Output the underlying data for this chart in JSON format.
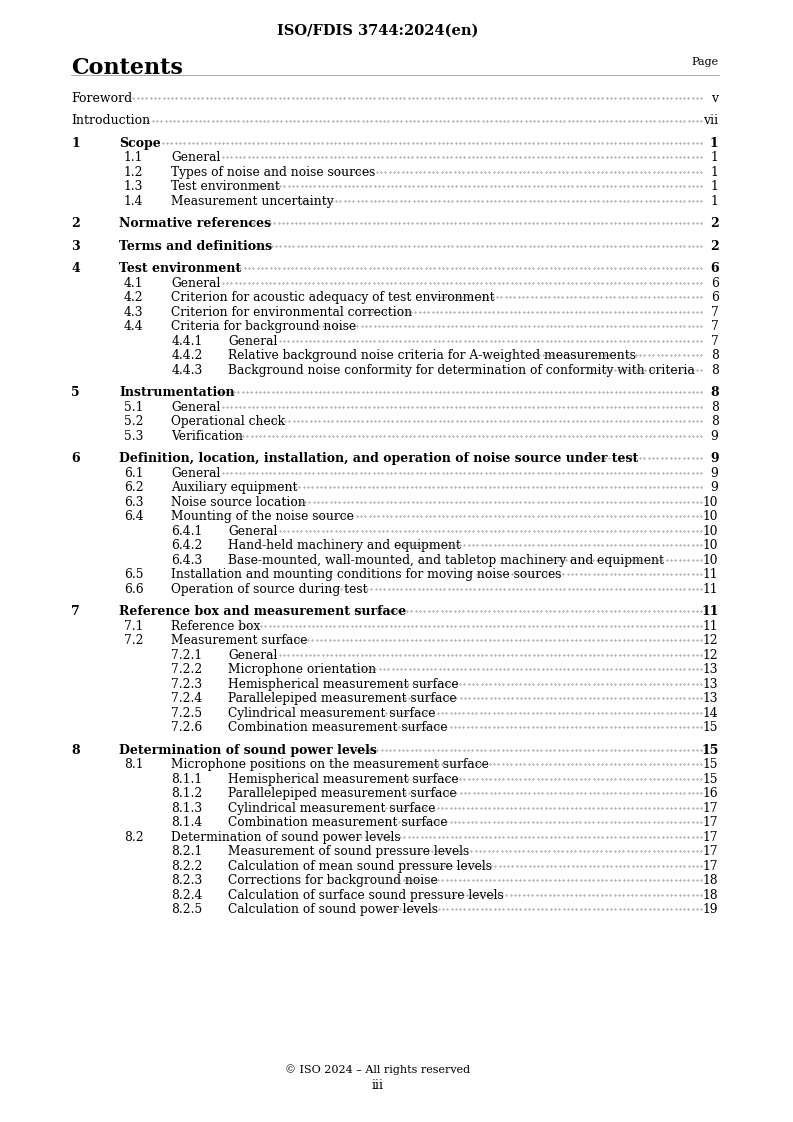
{
  "title": "ISO/FDIS 3744:2024(en)",
  "header_left": "Contents",
  "header_right": "Page",
  "footer": "© ISO 2024 – All rights reserved\niii",
  "background_color": "#ffffff",
  "text_color": "#000000",
  "entries": [
    {
      "level": 0,
      "num": "Foreword",
      "text": "",
      "page": "v",
      "bold": false,
      "gap_before": true
    },
    {
      "level": 0,
      "num": "Introduction",
      "text": "",
      "page": "vii",
      "bold": false,
      "gap_before": true
    },
    {
      "level": 0,
      "num": "1",
      "text": "Scope",
      "page": "1",
      "bold": true,
      "gap_before": true
    },
    {
      "level": 1,
      "num": "1.1",
      "text": "General",
      "page": "1",
      "bold": false,
      "gap_before": false
    },
    {
      "level": 1,
      "num": "1.2",
      "text": "Types of noise and noise sources",
      "page": "1",
      "bold": false,
      "gap_before": false
    },
    {
      "level": 1,
      "num": "1.3",
      "text": "Test environment",
      "page": "1",
      "bold": false,
      "gap_before": false
    },
    {
      "level": 1,
      "num": "1.4",
      "text": "Measurement uncertainty",
      "page": "1",
      "bold": false,
      "gap_before": false
    },
    {
      "level": 0,
      "num": "2",
      "text": "Normative references",
      "page": "2",
      "bold": true,
      "gap_before": true
    },
    {
      "level": 0,
      "num": "3",
      "text": "Terms and definitions",
      "page": "2",
      "bold": true,
      "gap_before": true
    },
    {
      "level": 0,
      "num": "4",
      "text": "Test environment",
      "page": "6",
      "bold": true,
      "gap_before": true
    },
    {
      "level": 1,
      "num": "4.1",
      "text": "General",
      "page": "6",
      "bold": false,
      "gap_before": false
    },
    {
      "level": 1,
      "num": "4.2",
      "text": "Criterion for acoustic adequacy of test environment",
      "page": "6",
      "bold": false,
      "gap_before": false
    },
    {
      "level": 1,
      "num": "4.3",
      "text": "Criterion for environmental correction",
      "page": "7",
      "bold": false,
      "gap_before": false
    },
    {
      "level": 1,
      "num": "4.4",
      "text": "Criteria for background noise",
      "page": "7",
      "bold": false,
      "gap_before": false
    },
    {
      "level": 2,
      "num": "4.4.1",
      "text": "General",
      "page": "7",
      "bold": false,
      "gap_before": false
    },
    {
      "level": 2,
      "num": "4.4.2",
      "text": "Relative background noise criteria for A-weighted measurements",
      "page": "8",
      "bold": false,
      "gap_before": false
    },
    {
      "level": 2,
      "num": "4.4.3",
      "text": "Background noise conformity for determination of conformity with criteria",
      "page": "8",
      "bold": false,
      "gap_before": false
    },
    {
      "level": 0,
      "num": "5",
      "text": "Instrumentation",
      "page": "8",
      "bold": true,
      "gap_before": true
    },
    {
      "level": 1,
      "num": "5.1",
      "text": "General",
      "page": "8",
      "bold": false,
      "gap_before": false
    },
    {
      "level": 1,
      "num": "5.2",
      "text": "Operational check",
      "page": "8",
      "bold": false,
      "gap_before": false
    },
    {
      "level": 1,
      "num": "5.3",
      "text": "Verification",
      "page": "9",
      "bold": false,
      "gap_before": false
    },
    {
      "level": 0,
      "num": "6",
      "text": "Definition, location, installation, and operation of noise source under test",
      "page": "9",
      "bold": true,
      "gap_before": true
    },
    {
      "level": 1,
      "num": "6.1",
      "text": "General",
      "page": "9",
      "bold": false,
      "gap_before": false
    },
    {
      "level": 1,
      "num": "6.2",
      "text": "Auxiliary equipment",
      "page": "9",
      "bold": false,
      "gap_before": false
    },
    {
      "level": 1,
      "num": "6.3",
      "text": "Noise source location",
      "page": "10",
      "bold": false,
      "gap_before": false
    },
    {
      "level": 1,
      "num": "6.4",
      "text": "Mounting of the noise source",
      "page": "10",
      "bold": false,
      "gap_before": false
    },
    {
      "level": 2,
      "num": "6.4.1",
      "text": "General",
      "page": "10",
      "bold": false,
      "gap_before": false
    },
    {
      "level": 2,
      "num": "6.4.2",
      "text": "Hand-held machinery and equipment",
      "page": "10",
      "bold": false,
      "gap_before": false
    },
    {
      "level": 2,
      "num": "6.4.3",
      "text": "Base-mounted, wall-mounted, and tabletop machinery and equipment",
      "page": "10",
      "bold": false,
      "gap_before": false
    },
    {
      "level": 1,
      "num": "6.5",
      "text": "Installation and mounting conditions for moving noise sources",
      "page": "11",
      "bold": false,
      "gap_before": false
    },
    {
      "level": 1,
      "num": "6.6",
      "text": "Operation of source during test",
      "page": "11",
      "bold": false,
      "gap_before": false
    },
    {
      "level": 0,
      "num": "7",
      "text": "Reference box and measurement surface",
      "page": "11",
      "bold": true,
      "gap_before": true
    },
    {
      "level": 1,
      "num": "7.1",
      "text": "Reference box",
      "page": "11",
      "bold": false,
      "gap_before": false
    },
    {
      "level": 1,
      "num": "7.2",
      "text": "Measurement surface",
      "page": "12",
      "bold": false,
      "gap_before": false
    },
    {
      "level": 2,
      "num": "7.2.1",
      "text": "General",
      "page": "12",
      "bold": false,
      "gap_before": false
    },
    {
      "level": 2,
      "num": "7.2.2",
      "text": "Microphone orientation",
      "page": "13",
      "bold": false,
      "gap_before": false
    },
    {
      "level": 2,
      "num": "7.2.3",
      "text": "Hemispherical measurement surface",
      "page": "13",
      "bold": false,
      "gap_before": false
    },
    {
      "level": 2,
      "num": "7.2.4",
      "text": "Parallelepiped measurement surface",
      "page": "13",
      "bold": false,
      "gap_before": false
    },
    {
      "level": 2,
      "num": "7.2.5",
      "text": "Cylindrical measurement surface",
      "page": "14",
      "bold": false,
      "gap_before": false
    },
    {
      "level": 2,
      "num": "7.2.6",
      "text": "Combination measurement surface",
      "page": "15",
      "bold": false,
      "gap_before": false
    },
    {
      "level": 0,
      "num": "8",
      "text": "Determination of sound power levels",
      "page": "15",
      "bold": true,
      "gap_before": true
    },
    {
      "level": 1,
      "num": "8.1",
      "text": "Microphone positions on the measurement surface",
      "page": "15",
      "bold": false,
      "gap_before": false
    },
    {
      "level": 2,
      "num": "8.1.1",
      "text": "Hemispherical measurement surface",
      "page": "15",
      "bold": false,
      "gap_before": false
    },
    {
      "level": 2,
      "num": "8.1.2",
      "text": "Parallelepiped measurement surface",
      "page": "16",
      "bold": false,
      "gap_before": false
    },
    {
      "level": 2,
      "num": "8.1.3",
      "text": "Cylindrical measurement surface",
      "page": "17",
      "bold": false,
      "gap_before": false
    },
    {
      "level": 2,
      "num": "8.1.4",
      "text": "Combination measurement surface",
      "page": "17",
      "bold": false,
      "gap_before": false
    },
    {
      "level": 1,
      "num": "8.2",
      "text": "Determination of sound power levels",
      "page": "17",
      "bold": false,
      "gap_before": false
    },
    {
      "level": 2,
      "num": "8.2.1",
      "text": "Measurement of sound pressure levels",
      "page": "17",
      "bold": false,
      "gap_before": false
    },
    {
      "level": 2,
      "num": "8.2.2",
      "text": "Calculation of mean sound pressure levels",
      "page": "17",
      "bold": false,
      "gap_before": false
    },
    {
      "level": 2,
      "num": "8.2.3",
      "text": "Corrections for background noise",
      "page": "18",
      "bold": false,
      "gap_before": false
    },
    {
      "level": 2,
      "num": "8.2.4",
      "text": "Calculation of surface sound pressure levels",
      "page": "18",
      "bold": false,
      "gap_before": false
    },
    {
      "level": 2,
      "num": "8.2.5",
      "text": "Calculation of sound power levels",
      "page": "19",
      "bold": false,
      "gap_before": false
    }
  ]
}
